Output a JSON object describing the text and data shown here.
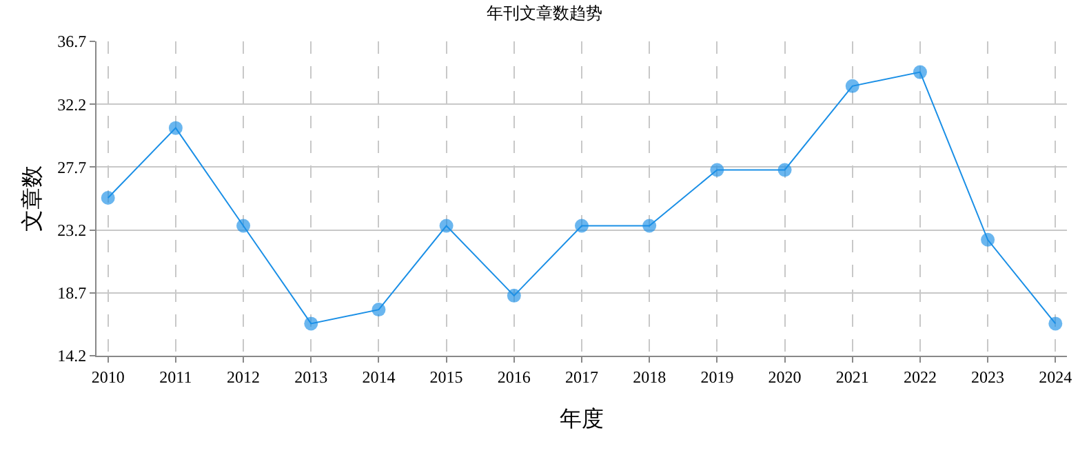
{
  "chart_data": {
    "type": "line",
    "title": "年刊文章数趋势",
    "xlabel": "年度",
    "ylabel": "文章数",
    "categories": [
      "2010",
      "2011",
      "2012",
      "2013",
      "2014",
      "2015",
      "2016",
      "2017",
      "2018",
      "2019",
      "2020",
      "2021",
      "2022",
      "2023",
      "2024"
    ],
    "series": [
      {
        "color": "#1a8fe6",
        "values": [
          25.5,
          30.5,
          23.5,
          16.5,
          17.5,
          23.5,
          18.5,
          23.5,
          23.5,
          27.5,
          27.5,
          33.5,
          34.5,
          22.5,
          16.5
        ]
      }
    ],
    "ylim": [
      14.2,
      36.7
    ],
    "yticks": [
      14.2,
      18.7,
      23.2,
      27.7,
      32.2,
      36.7
    ],
    "grid": true,
    "marker": "circle",
    "line_style": "solid"
  }
}
